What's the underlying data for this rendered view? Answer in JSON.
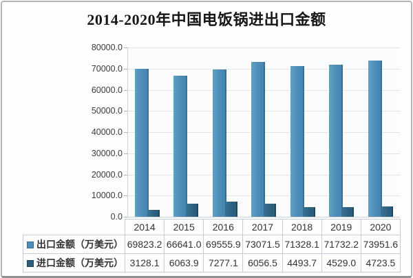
{
  "title": "2014-2020年中国电饭锅进出口金额",
  "chart_data": {
    "type": "bar",
    "title": "2014-2020年中国电饭锅进出口金额",
    "categories": [
      "2014",
      "2015",
      "2016",
      "2017",
      "2018",
      "2019",
      "2020"
    ],
    "series": [
      {
        "name": "出口金额（万美元）",
        "values": [
          69823.2,
          66641.0,
          69555.9,
          73071.5,
          71328.1,
          71732.2,
          73951.6
        ],
        "color": "#4c8db9",
        "display_values": [
          "69823.2",
          "66641.0",
          "69555.9",
          "73071.5",
          "71328.1",
          "71732.2",
          "73951.6"
        ]
      },
      {
        "name": "进口金额（万美元）",
        "values": [
          3128.1,
          6063.9,
          7277.1,
          6056.5,
          4493.7,
          4529.0,
          4723.5
        ],
        "color": "#2b5d7d",
        "display_values": [
          "3128.1",
          "6063.9",
          "7277.1",
          "6056.5",
          "4493.7",
          "4529.0",
          "4723.5"
        ]
      }
    ],
    "ylim": [
      0,
      80000
    ],
    "ytick_step": 10000,
    "ytick_labels": [
      "0.0",
      "10000.0",
      "20000.0",
      "30000.0",
      "40000.0",
      "50000.0",
      "60000.0",
      "70000.0",
      "80000.0"
    ],
    "grid": true,
    "legend_position": "bottom-table"
  },
  "colors": {
    "export_bar": "#4c8db9",
    "export_bar_edge": "#3a6e95",
    "import_bar": "#2b5d7d",
    "import_bar_edge": "#1f4661",
    "gridline": "#e2e5e8",
    "table_border": "#c5ced8",
    "text": "#333333",
    "frame_border": "#b3b3b3"
  }
}
